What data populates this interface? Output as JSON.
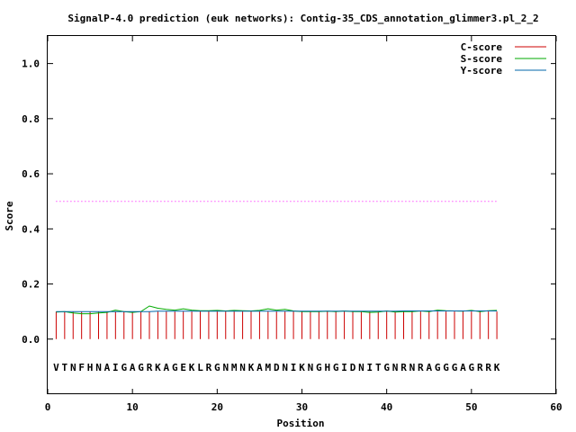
{
  "chart_data": {
    "type": "line",
    "title": "SignalP-4.0 prediction (euk networks): Contig-35_CDS_annotation_glimmer3.pl_2_2",
    "xlabel": "Position",
    "ylabel": "Score",
    "xlim": [
      0,
      60
    ],
    "ylim": [
      -0.2,
      1.1
    ],
    "x_ticks": [
      "0",
      "10",
      "20",
      "30",
      "40",
      "50",
      "60"
    ],
    "y_ticks": [
      "0.0",
      "0.2",
      "0.4",
      "0.6",
      "0.8",
      "1.0"
    ],
    "legend_position": "top-right",
    "sequence": [
      "V",
      "T",
      "N",
      "F",
      "H",
      "N",
      "A",
      "I",
      "G",
      "A",
      "G",
      "R",
      "K",
      "A",
      "G",
      "E",
      "K",
      "L",
      "R",
      "G",
      "N",
      "M",
      "N",
      "K",
      "A",
      "M",
      "D",
      "N",
      "I",
      "K",
      "N",
      "G",
      "H",
      "G",
      "I",
      "D",
      "N",
      "I",
      "T",
      "G",
      "N",
      "R",
      "N",
      "R",
      "A",
      "G",
      "G",
      "G",
      "A",
      "G",
      "R",
      "R",
      "K"
    ],
    "threshold": {
      "value": 0.5,
      "x_range": [
        1,
        53
      ],
      "color": "#ff00ff"
    },
    "series": [
      {
        "name": "C-score",
        "color": "#cc0000",
        "style": "impulse",
        "x": [
          1,
          2,
          3,
          4,
          5,
          6,
          7,
          8,
          9,
          10,
          11,
          12,
          13,
          14,
          15,
          16,
          17,
          18,
          19,
          20,
          21,
          22,
          23,
          24,
          25,
          26,
          27,
          28,
          29,
          30,
          31,
          32,
          33,
          34,
          35,
          36,
          37,
          38,
          39,
          40,
          41,
          42,
          43,
          44,
          45,
          46,
          47,
          48,
          49,
          50,
          51,
          52,
          53
        ],
        "values": [
          0.1,
          0.1,
          0.1,
          0.1,
          0.1,
          0.1,
          0.1,
          0.1,
          0.1,
          0.1,
          0.1,
          0.1,
          0.1,
          0.1,
          0.1,
          0.1,
          0.1,
          0.1,
          0.1,
          0.1,
          0.1,
          0.1,
          0.1,
          0.1,
          0.1,
          0.1,
          0.1,
          0.1,
          0.1,
          0.1,
          0.1,
          0.1,
          0.1,
          0.1,
          0.1,
          0.1,
          0.1,
          0.1,
          0.1,
          0.1,
          0.1,
          0.1,
          0.1,
          0.1,
          0.1,
          0.1,
          0.1,
          0.1,
          0.1,
          0.1,
          0.1,
          0.1,
          0.1
        ]
      },
      {
        "name": "S-score",
        "color": "#00aa00",
        "style": "line",
        "x": [
          1,
          2,
          3,
          4,
          5,
          6,
          7,
          8,
          9,
          10,
          11,
          12,
          13,
          14,
          15,
          16,
          17,
          18,
          19,
          20,
          21,
          22,
          23,
          24,
          25,
          26,
          27,
          28,
          29,
          30,
          31,
          32,
          33,
          34,
          35,
          36,
          37,
          38,
          39,
          40,
          41,
          42,
          43,
          44,
          45,
          46,
          47,
          48,
          49,
          50,
          51,
          52,
          53
        ],
        "values": [
          0.098,
          0.1,
          0.095,
          0.092,
          0.092,
          0.095,
          0.097,
          0.105,
          0.1,
          0.097,
          0.1,
          0.12,
          0.112,
          0.108,
          0.105,
          0.11,
          0.105,
          0.103,
          0.103,
          0.104,
          0.102,
          0.104,
          0.103,
          0.102,
          0.104,
          0.11,
          0.105,
          0.108,
          0.102,
          0.1,
          0.1,
          0.1,
          0.101,
          0.1,
          0.102,
          0.1,
          0.1,
          0.097,
          0.098,
          0.102,
          0.098,
          0.1,
          0.1,
          0.102,
          0.1,
          0.105,
          0.103,
          0.102,
          0.101,
          0.104,
          0.1,
          0.103,
          0.104
        ]
      },
      {
        "name": "Y-score",
        "color": "#0066aa",
        "style": "line",
        "x": [
          1,
          2,
          3,
          4,
          5,
          6,
          7,
          8,
          9,
          10,
          11,
          12,
          13,
          14,
          15,
          16,
          17,
          18,
          19,
          20,
          21,
          22,
          23,
          24,
          25,
          26,
          27,
          28,
          29,
          30,
          31,
          32,
          33,
          34,
          35,
          36,
          37,
          38,
          39,
          40,
          41,
          42,
          43,
          44,
          45,
          46,
          47,
          48,
          49,
          50,
          51,
          52,
          53
        ],
        "values": [
          0.1,
          0.1,
          0.1,
          0.1,
          0.1,
          0.1,
          0.1,
          0.1,
          0.1,
          0.1,
          0.1,
          0.1,
          0.101,
          0.101,
          0.101,
          0.101,
          0.101,
          0.101,
          0.101,
          0.101,
          0.101,
          0.101,
          0.101,
          0.101,
          0.101,
          0.101,
          0.101,
          0.101,
          0.101,
          0.101,
          0.101,
          0.101,
          0.101,
          0.101,
          0.101,
          0.101,
          0.101,
          0.101,
          0.101,
          0.101,
          0.101,
          0.102,
          0.102,
          0.102,
          0.102,
          0.102,
          0.102,
          0.102,
          0.102,
          0.102,
          0.102,
          0.102,
          0.102
        ]
      }
    ]
  }
}
